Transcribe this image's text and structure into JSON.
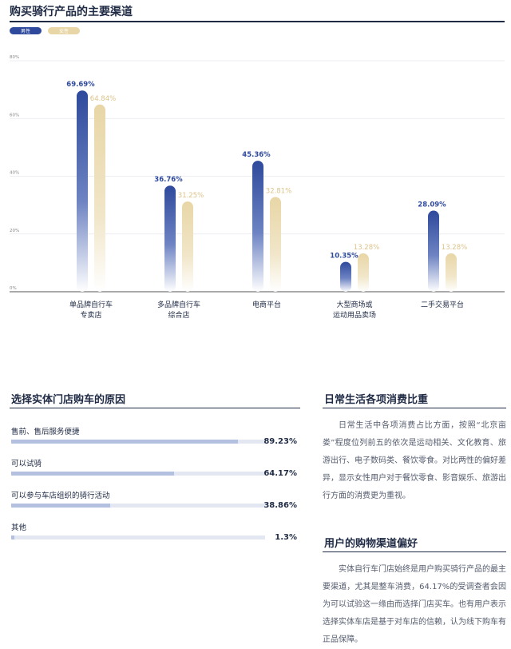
{
  "header": {
    "title": "购买骑行产品的主要渠道"
  },
  "chart_data": {
    "type": "bar",
    "categories": [
      "单品牌自行车\n专卖店",
      "多品牌自行车\n综合店",
      "电商平台",
      "大型商场或\n运动用品卖场",
      "二手交易平台"
    ],
    "series": [
      {
        "name": "男性",
        "values": [
          69.69,
          36.76,
          45.36,
          10.35,
          28.09
        ],
        "labels": [
          "69.69%",
          "36.76%",
          "45.36%",
          "10.35%",
          "28.09%"
        ]
      },
      {
        "name": "女性",
        "values": [
          64.84,
          31.25,
          32.81,
          13.28,
          13.28
        ],
        "labels": [
          "64.84%",
          "31.25%",
          "32.81%",
          "13.28%",
          "13.28%"
        ]
      }
    ],
    "yticks": [
      "0%",
      "20%",
      "40%",
      "60%",
      "80%"
    ],
    "ylim": [
      0,
      80
    ],
    "grid": true,
    "legend": "top-left",
    "colors": {
      "male": "#2f4a9c",
      "female": "#e8d6a6"
    }
  },
  "reasons_section": {
    "title": "选择实体门店购车的原因",
    "items": [
      {
        "label": "售前、售后服务便捷",
        "value": "89.23%",
        "fraction": 0.8923
      },
      {
        "label": "可以试骑",
        "value": "64.17%",
        "fraction": 0.6417
      },
      {
        "label": "可以参与车店组织的骑行活动",
        "value": "38.86%",
        "fraction": 0.3886
      },
      {
        "label": "其他",
        "value": "1.3%",
        "fraction": 0.013
      }
    ]
  },
  "daily_section": {
    "title": "日常生活各项消费比重",
    "text": "日常生活中各项消费占比方面，按照“北京亩娄”程度位列前五的依次是运动相关、文化教育、旅游出行、电子数码类、餐饮零食。对比两性的偏好差异，显示女性用户对于餐饮零食、影音娱乐、旅游出行方面的消费更为重视。"
  },
  "channel_section": {
    "title": "用户的购物渠道偏好",
    "text": "实体自行车门店始终是用户购买骑行产品的最主要渠道，尤其是整车消费，64.17%的受调查者会因为可以试验这一缘由而选择门店买车。也有用户表示选择实体车店是基于对车店的信赖，认为线下购车有正品保障。"
  }
}
